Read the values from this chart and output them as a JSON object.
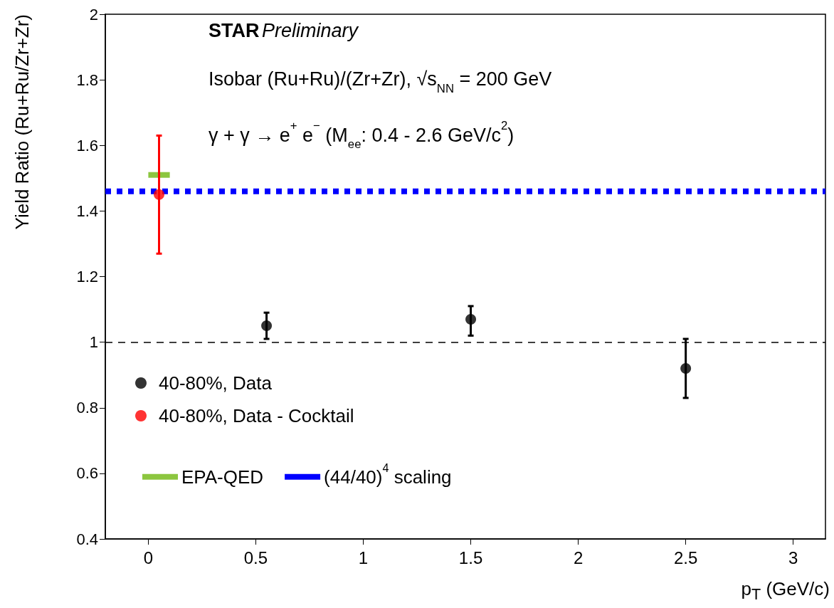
{
  "chart_data": {
    "type": "scatter",
    "xlabel": "p$_{T}$ (GeV/c)",
    "ylabel": "Yield Ratio (Ru+Ru/Zr+Zr)",
    "annotations": [
      "STAR",
      "Preliminary",
      "Isobar (Ru+Ru)/(Zr+Zr), √s$_{NN}$ = 200 GeV",
      "γ + γ → e$^{+}$ e$^{−}$ (M$_{ee}$: 0.4 - 2.6 GeV/c$^{2}$)"
    ],
    "xlim": [
      -0.2,
      3.15
    ],
    "xticks": [
      0,
      0.5,
      1,
      1.5,
      2,
      2.5,
      3
    ],
    "ylim": [
      0.4,
      2
    ],
    "yticks": [
      0.4,
      0.6,
      0.8,
      1,
      1.2,
      1.4,
      1.6,
      1.8,
      2
    ],
    "series": [
      {
        "name": "40-80%, Data",
        "color": "#000000",
        "x": [
          0.55,
          1.5,
          2.5
        ],
        "values": [
          1.05,
          1.07,
          0.92
        ],
        "errors": [
          [
            1.01,
            1.09
          ],
          [
            1.02,
            1.11
          ],
          [
            0.83,
            1.01
          ]
        ]
      },
      {
        "name": "40-80%, Data - Cocktail",
        "color": "#ff0000",
        "x": [
          0.05
        ],
        "values": [
          1.45
        ],
        "errors": [
          [
            1.27,
            1.63
          ]
        ]
      },
      {
        "name": "EPA-QED",
        "type": "line",
        "color": "#8cc63f",
        "x": [
          0,
          0.1
        ],
        "values": [
          1.51,
          1.51
        ],
        "marker": "none",
        "line_style": "solid"
      },
      {
        "name": "(44/40)$^{4}$ scaling",
        "type": "line",
        "color": "#0000ff",
        "x": [
          -0.2,
          3.15
        ],
        "values": [
          1.46,
          1.46
        ],
        "marker": "none",
        "line_style": "dotted"
      }
    ],
    "ref_lines": [
      {
        "axis": "y",
        "value": 1,
        "color": "#000000",
        "line_style": "dashed"
      }
    ],
    "marker": "circle",
    "grid": false,
    "legend": "bottom left"
  }
}
